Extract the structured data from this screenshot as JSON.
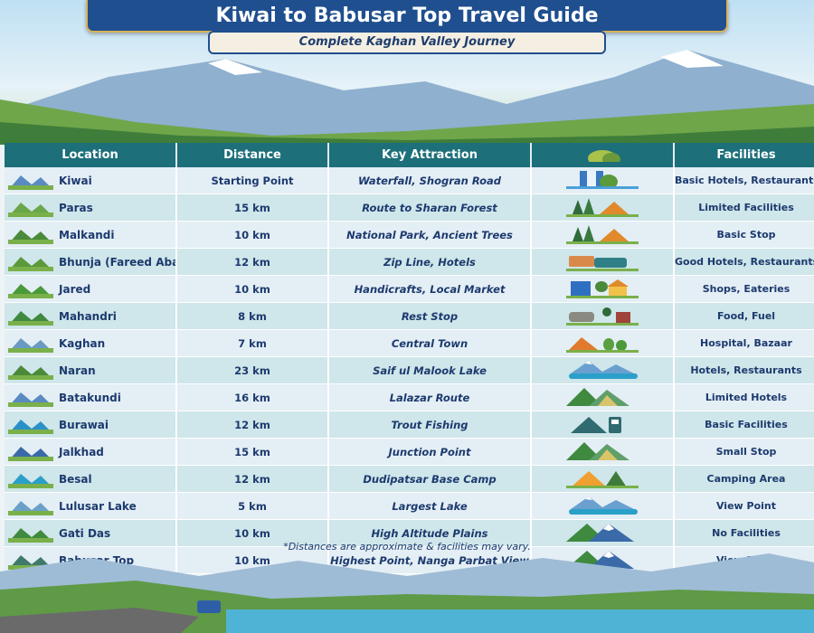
{
  "header": {
    "title": "Kiwai to Babusar Top Travel Guide",
    "subtitle": "Complete Kaghan Valley Journey"
  },
  "table": {
    "columns": [
      "Location",
      "Distance",
      "Key Attraction",
      "",
      "Facilities"
    ],
    "rows": [
      {
        "location": "Kiwai",
        "distance": "Starting Point",
        "attraction": "Waterfall, Shogran Road",
        "icon": "waterfall-icon",
        "facilities": "Basic Hotels, Restaurants"
      },
      {
        "location": "Paras",
        "distance": "15 km",
        "attraction": "Route to Sharan Forest",
        "icon": "forest-tent-icon",
        "facilities": "Limited Facilities"
      },
      {
        "location": "Malkandi",
        "distance": "10 km",
        "attraction": "National Park, Ancient Trees",
        "icon": "forest-tent-icon",
        "facilities": "Basic Stop"
      },
      {
        "location": "Bhunja (Fareed Abad)",
        "distance": "12 km",
        "attraction": "Zip Line, Hotels",
        "icon": "vehicles-icon",
        "facilities": "Good Hotels, Restaurants"
      },
      {
        "location": "Jared",
        "distance": "10 km",
        "attraction": "Handicrafts, Local Market",
        "icon": "market-icon",
        "facilities": "Shops, Eateries"
      },
      {
        "location": "Mahandri",
        "distance": "8 km",
        "attraction": "Rest Stop",
        "icon": "rest-stop-icon",
        "facilities": "Food, Fuel"
      },
      {
        "location": "Kaghan",
        "distance": "7 km",
        "attraction": "Central Town",
        "icon": "town-icon",
        "facilities": "Hospital, Bazaar"
      },
      {
        "location": "Naran",
        "distance": "23 km",
        "attraction": "Saif ul Malook Lake",
        "icon": "lake-icon",
        "facilities": "Hotels, Restaurants"
      },
      {
        "location": "Batakundi",
        "distance": "16 km",
        "attraction": "Lalazar Route",
        "icon": "mountain-icon",
        "facilities": "Limited Hotels"
      },
      {
        "location": "Burawai",
        "distance": "12 km",
        "attraction": "Trout Fishing",
        "icon": "fuel-pump-icon",
        "facilities": "Basic Facilities"
      },
      {
        "location": "Jalkhad",
        "distance": "15 km",
        "attraction": "Junction Point",
        "icon": "mountain-icon",
        "facilities": "Small Stop"
      },
      {
        "location": "Besal",
        "distance": "12 km",
        "attraction": "Dudipatsar Base Camp",
        "icon": "tent-icon",
        "facilities": "Camping Area"
      },
      {
        "location": "Lulusar Lake",
        "distance": "5 km",
        "attraction": "Largest Lake",
        "icon": "lake-icon",
        "facilities": "View Point"
      },
      {
        "location": "Gati Das",
        "distance": "10 km",
        "attraction": "High Altitude Plains",
        "icon": "snow-mountain-icon",
        "facilities": "No Facilities"
      },
      {
        "location": "Babusar Top",
        "distance": "10 km",
        "attraction": "Highest Point, Nanga Parbat View",
        "icon": "snow-mountain-icon",
        "facilities": "View Point"
      }
    ]
  },
  "note": "*Distances are approximate & facilities may vary.",
  "colors": {
    "header": "#1d6f7a",
    "banner": "#1f4f8f",
    "text": "#1c3a6e"
  }
}
